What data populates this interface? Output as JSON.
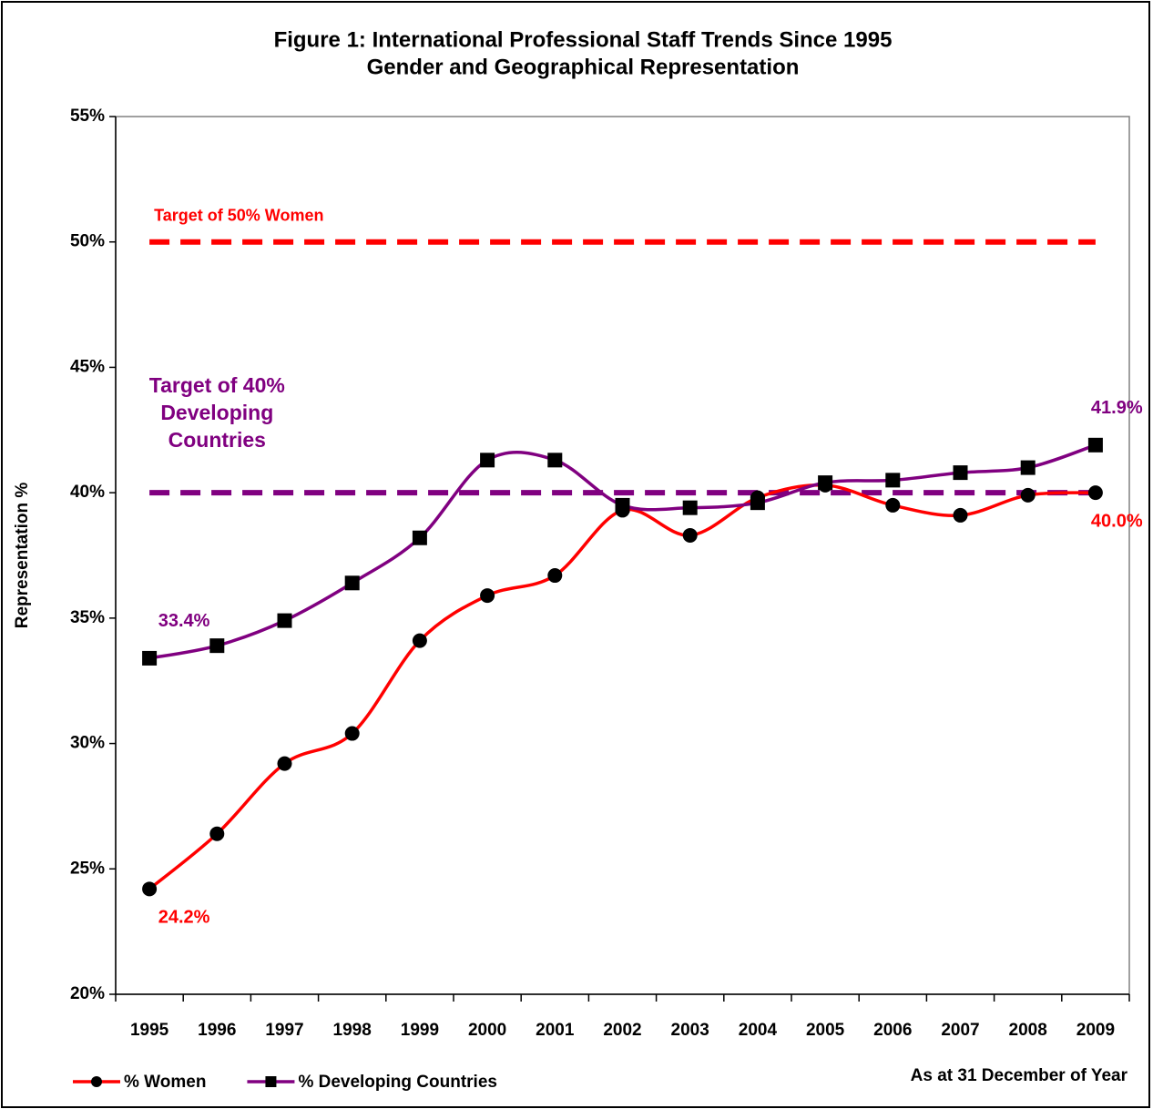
{
  "chart_data": {
    "type": "line",
    "title": "Figure 1: International Professional Staff Trends Since 1995",
    "subtitle": "Gender and Geographical Representation",
    "y_label": "Representation %",
    "note": "As at 31 December of Year",
    "categories": [
      "1995",
      "1996",
      "1997",
      "1998",
      "1999",
      "2000",
      "2001",
      "2002",
      "2003",
      "2004",
      "2005",
      "2006",
      "2007",
      "2008",
      "2009"
    ],
    "series": [
      {
        "name": "% Women",
        "color": "#ff0000",
        "marker": "circle",
        "label_color": "#ff0000",
        "values": [
          24.2,
          26.4,
          29.2,
          30.4,
          34.1,
          35.9,
          36.7,
          39.3,
          38.3,
          39.8,
          40.3,
          39.5,
          39.1,
          39.9,
          40.0
        ],
        "value_labels": [
          "24.2%",
          null,
          null,
          null,
          null,
          null,
          null,
          null,
          null,
          null,
          null,
          null,
          null,
          null,
          "40.0%"
        ]
      },
      {
        "name": "% Developing Countries",
        "color": "#800080",
        "marker": "square",
        "label_color": "#800080",
        "values": [
          33.4,
          33.9,
          34.9,
          36.4,
          38.2,
          41.3,
          41.3,
          39.5,
          39.4,
          39.6,
          40.4,
          40.5,
          40.8,
          41.0,
          41.9
        ],
        "value_labels": [
          "33.4%",
          null,
          null,
          null,
          null,
          null,
          null,
          null,
          null,
          null,
          null,
          null,
          null,
          null,
          "41.9%"
        ]
      }
    ],
    "targets": [
      {
        "label": [
          "Target of 50% Women"
        ],
        "value": 50,
        "color": "#ff0000"
      },
      {
        "label": [
          "Target of 40%",
          "Developing",
          "Countries"
        ],
        "value": 40,
        "color": "#800080"
      }
    ],
    "ylim": [
      20,
      55
    ],
    "yticks": [
      {
        "value": 20,
        "label": "20%"
      },
      {
        "value": 25,
        "label": "25%"
      },
      {
        "value": 30,
        "label": "30%"
      },
      {
        "value": 35,
        "label": "35%"
      },
      {
        "value": 40,
        "label": "40%"
      },
      {
        "value": 45,
        "label": "45%"
      },
      {
        "value": 50,
        "label": "50%"
      },
      {
        "value": 55,
        "label": "55%"
      }
    ],
    "grid": false,
    "legend": "bottom-left"
  }
}
